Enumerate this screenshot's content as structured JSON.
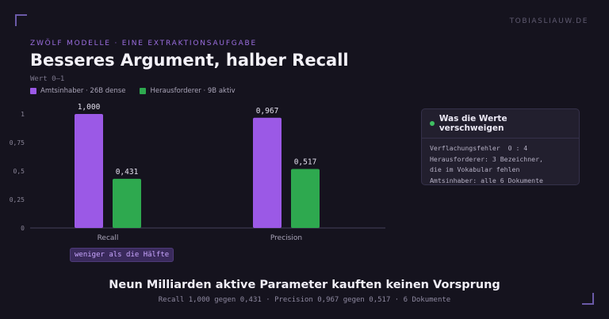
{
  "brand": "TOBIASLIAUW.DE",
  "eyebrow": "ZWÖLF MODELLE · EINE EXTRAKTIONSAUFGABE",
  "colors": {
    "purple": "#9b59e6",
    "green": "#2ea94f",
    "axis": "#45415a",
    "tick": "#8a8598"
  },
  "chart_data": {
    "type": "bar",
    "title": "Besseres Argument, halber Recall",
    "ylabel": "Wert 0–1",
    "xlabel": "",
    "ylim": [
      0,
      1
    ],
    "yticks": [
      "0",
      "0,25",
      "0,5",
      "0,75",
      "1"
    ],
    "yticks_values": [
      0,
      0.25,
      0.5,
      0.75,
      1
    ],
    "grid": false,
    "legend_position": "top-left",
    "categories": [
      "Recall",
      "Precision"
    ],
    "series": [
      {
        "name": "Amtsinhaber · 26B dense",
        "values": [
          1.0,
          0.967
        ],
        "labels": [
          "1,000",
          "0,967"
        ]
      },
      {
        "name": "Herausforderer · 9B aktiv",
        "values": [
          0.431,
          0.517
        ],
        "labels": [
          "0,431",
          "0,517"
        ]
      }
    ],
    "annotation": "weniger als die Hälfte"
  },
  "panel": {
    "title": "Was die Werte verschweigen",
    "lines": [
      "Verflachungsfehler  0 : 4",
      "Herausforderer: 3 Bezeichner,",
      "die im Vokabular fehlen",
      "Amtsinhaber: alle 6 Dokumente"
    ]
  },
  "footer": {
    "title": "Neun Milliarden aktive Parameter kauften keinen Vorsprung",
    "subtitle": "Recall 1,000 gegen 0,431 · Precision 0,967 gegen 0,517 · 6 Dokumente"
  }
}
